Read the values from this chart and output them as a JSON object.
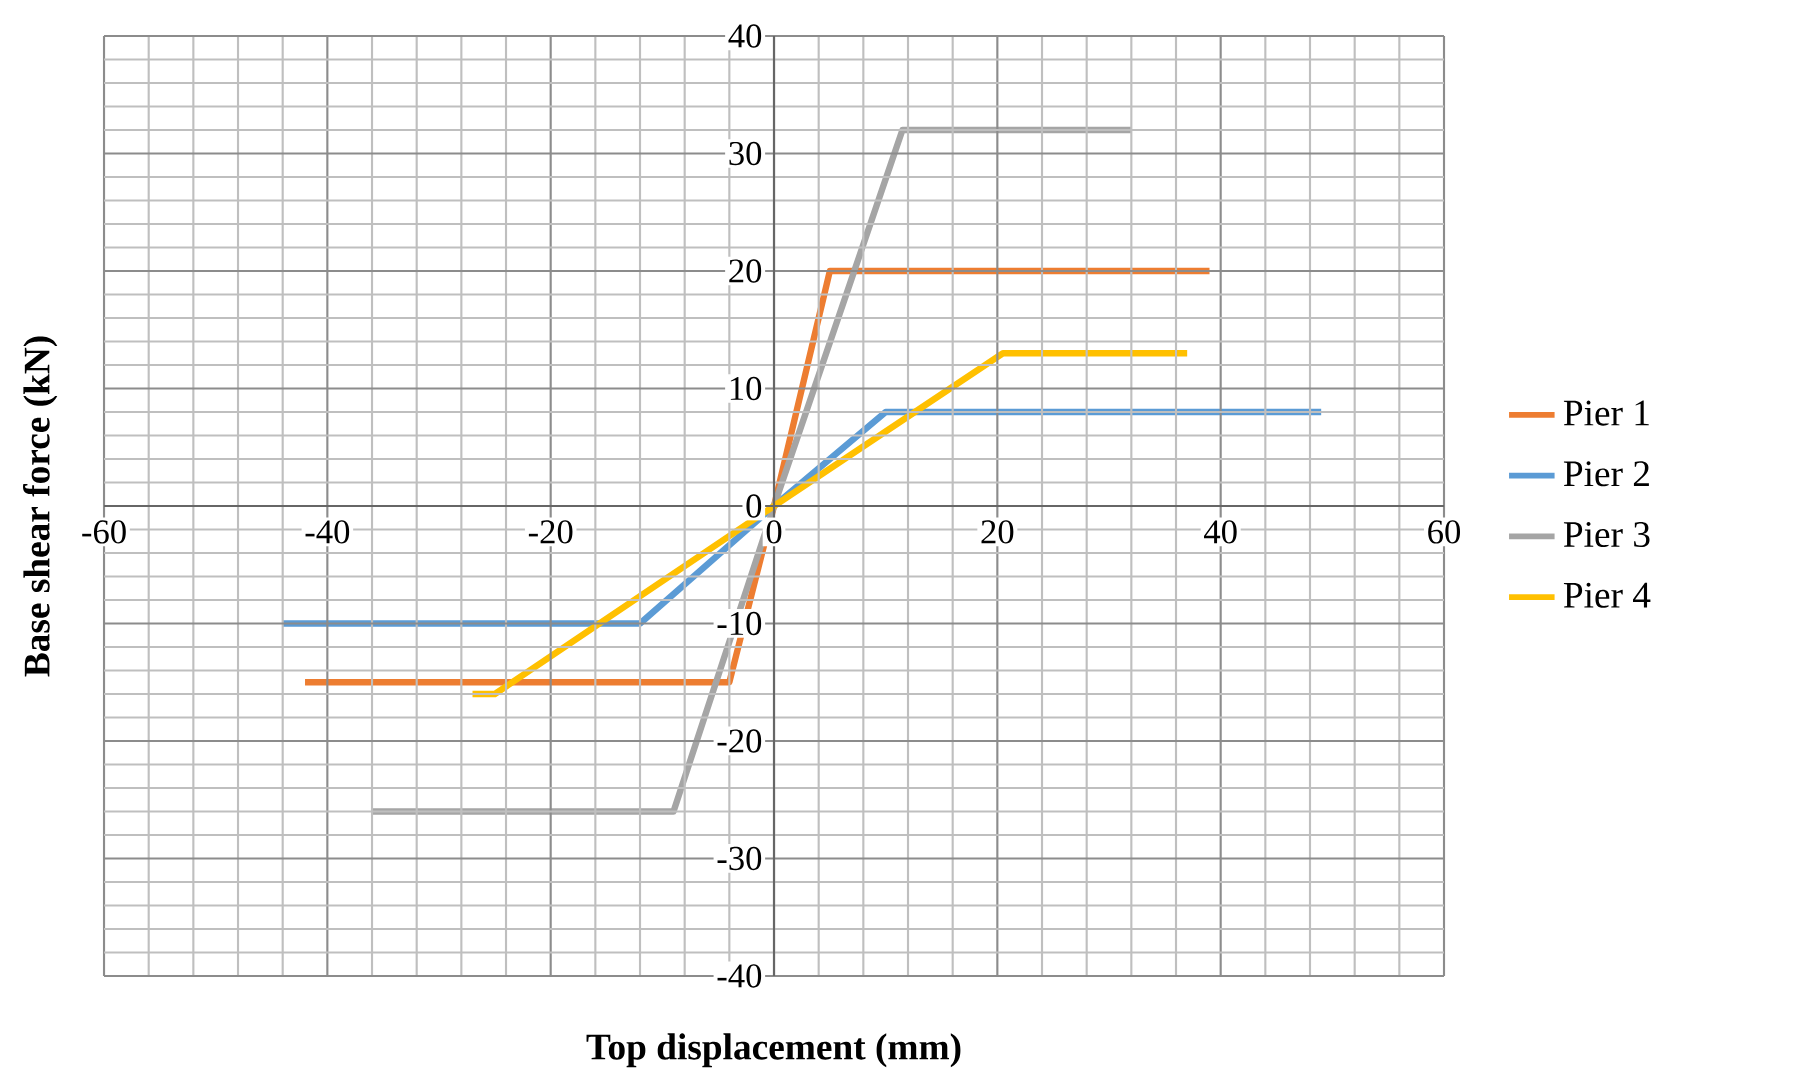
{
  "chart_data": {
    "type": "line",
    "xlabel": "Top displacement (mm)",
    "ylabel": "Base shear force (kN)",
    "xlim": [
      -60,
      60
    ],
    "xticks": [
      -60,
      -40,
      -20,
      0,
      20,
      40,
      60
    ],
    "ylim": [
      -40,
      40
    ],
    "yticks": [
      -40,
      -30,
      -20,
      -10,
      0,
      10,
      20,
      30,
      40
    ],
    "grid": true,
    "legend": "right",
    "marker": "none",
    "line_style": "solid",
    "series": [
      {
        "name": "Pier 1",
        "color": "#ed7d31",
        "x": [
          -42,
          -4,
          0,
          5,
          39
        ],
        "values": [
          -15,
          -15,
          0,
          20,
          20
        ]
      },
      {
        "name": "Pier 2",
        "color": "#5b9bd5",
        "x": [
          -44,
          -12,
          0,
          10,
          49
        ],
        "values": [
          -10,
          -10,
          0,
          8,
          8
        ]
      },
      {
        "name": "Pier 3",
        "color": "#a5a5a5",
        "x": [
          -36,
          -9,
          0,
          11.5,
          32
        ],
        "values": [
          -26,
          -26,
          0,
          32,
          32
        ]
      },
      {
        "name": "Pier 4",
        "color": "#ffc000",
        "x": [
          -27,
          -25,
          0,
          20.5,
          37
        ],
        "values": [
          -16,
          -16,
          0,
          13,
          13
        ]
      }
    ]
  }
}
